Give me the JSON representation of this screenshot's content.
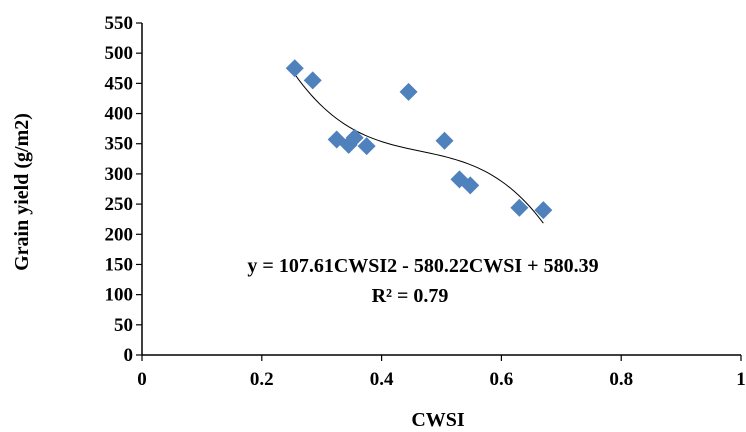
{
  "chart_data": {
    "type": "scatter",
    "xlabel": "CWSI",
    "ylabel": "Grain yield (g/m2)",
    "xlim": [
      0,
      1
    ],
    "ylim": [
      0,
      550
    ],
    "x_ticks": [
      "0",
      "0.2",
      "0.4",
      "0.6",
      "0.8",
      "1"
    ],
    "y_ticks": [
      "0",
      "50",
      "100",
      "150",
      "200",
      "250",
      "300",
      "350",
      "400",
      "450",
      "500",
      "550"
    ],
    "grid": false,
    "marker": "diamond",
    "marker_color": "#4f81bd",
    "trendline": {
      "type": "polynomial",
      "color": "#000000",
      "x_range": [
        0.255,
        0.67
      ],
      "equation": "y = 107.61CWSI2 - 580.22CWSI + 580.39",
      "r_squared": "R² = 0.79"
    },
    "points": [
      {
        "x": 0.255,
        "y": 475
      },
      {
        "x": 0.285,
        "y": 455
      },
      {
        "x": 0.325,
        "y": 357
      },
      {
        "x": 0.345,
        "y": 348
      },
      {
        "x": 0.355,
        "y": 360
      },
      {
        "x": 0.375,
        "y": 346
      },
      {
        "x": 0.445,
        "y": 436
      },
      {
        "x": 0.505,
        "y": 355
      },
      {
        "x": 0.53,
        "y": 291
      },
      {
        "x": 0.548,
        "y": 281
      },
      {
        "x": 0.63,
        "y": 244
      },
      {
        "x": 0.67,
        "y": 240
      }
    ]
  }
}
